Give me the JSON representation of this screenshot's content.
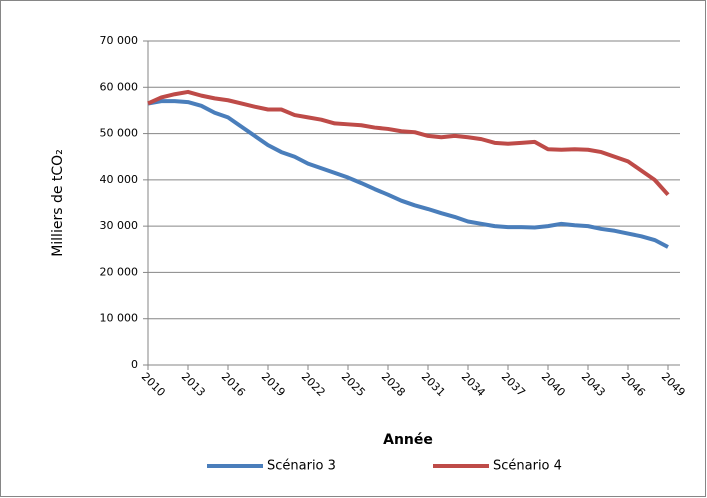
{
  "chart_data": {
    "type": "line",
    "y_label": "Milliers de tCO₂",
    "x_label": "Année",
    "x": [
      2010,
      2011,
      2012,
      2013,
      2014,
      2015,
      2016,
      2017,
      2018,
      2019,
      2020,
      2021,
      2022,
      2023,
      2024,
      2025,
      2026,
      2027,
      2028,
      2029,
      2030,
      2031,
      2032,
      2033,
      2034,
      2035,
      2036,
      2037,
      2038,
      2039,
      2040,
      2041,
      2042,
      2043,
      2044,
      2045,
      2046,
      2047,
      2048,
      2049
    ],
    "xlim": [
      2010,
      2049
    ],
    "xticks": [
      2010,
      2013,
      2016,
      2019,
      2022,
      2025,
      2028,
      2031,
      2034,
      2037,
      2040,
      2043,
      2046,
      2049
    ],
    "ylim": [
      0,
      70000
    ],
    "yticks": [
      {
        "value": 0,
        "label": "0"
      },
      {
        "value": 10000,
        "label": "10 000"
      },
      {
        "value": 20000,
        "label": "20 000"
      },
      {
        "value": 30000,
        "label": "30 000"
      },
      {
        "value": 40000,
        "label": "40 000"
      },
      {
        "value": 50000,
        "label": "50 000"
      },
      {
        "value": 60000,
        "label": "60 000"
      },
      {
        "value": 70000,
        "label": "70 000"
      }
    ],
    "grid": true,
    "legend": "bottom",
    "series": [
      {
        "name": "Scénario 3",
        "color": "#4a7ebb",
        "values": [
          56500,
          57000,
          57000,
          56800,
          56000,
          54500,
          53500,
          51500,
          49500,
          47500,
          46000,
          45000,
          43500,
          42500,
          41500,
          40500,
          39300,
          38000,
          36800,
          35500,
          34500,
          33700,
          32800,
          32000,
          31000,
          30500,
          30000,
          29800,
          29800,
          29700,
          30000,
          30500,
          30200,
          30000,
          29400,
          29000,
          28400,
          27800,
          27000,
          25500
        ]
      },
      {
        "name": "Scénario 4",
        "color": "#be4b48",
        "values": [
          56500,
          57800,
          58500,
          59000,
          58200,
          57600,
          57200,
          56500,
          55800,
          55200,
          55200,
          54000,
          53500,
          53000,
          52200,
          52000,
          51800,
          51300,
          51000,
          50500,
          50300,
          49500,
          49200,
          49500,
          49200,
          48800,
          48000,
          47800,
          48000,
          48200,
          46600,
          46500,
          46600,
          46500,
          46000,
          45000,
          44000,
          42000,
          40000,
          36800
        ]
      }
    ]
  }
}
